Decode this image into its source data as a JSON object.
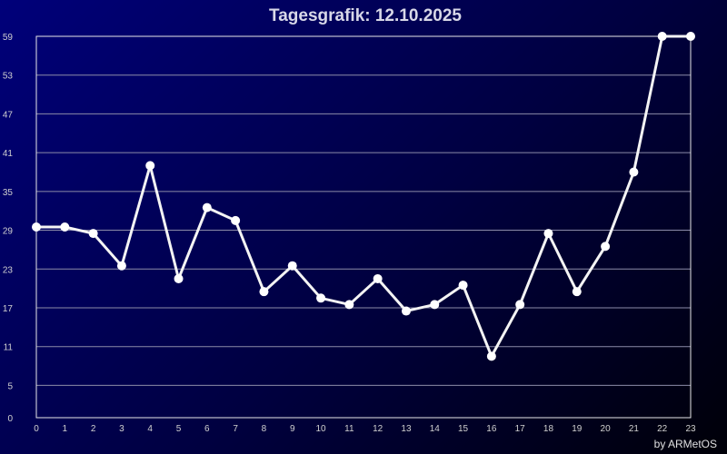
{
  "chart_data": {
    "type": "line",
    "title": "Tagesgrafik: 12.10.2025",
    "xlabel": "",
    "ylabel": "",
    "x": [
      0,
      1,
      2,
      3,
      4,
      5,
      6,
      7,
      8,
      9,
      10,
      11,
      12,
      13,
      14,
      15,
      16,
      17,
      18,
      19,
      20,
      21,
      22,
      23
    ],
    "x_tick_labels": [
      "0",
      "1",
      "2",
      "3",
      "4",
      "5",
      "6",
      "7",
      "8",
      "9",
      "10",
      "11",
      "12",
      "13",
      "14",
      "15",
      "16",
      "17",
      "18",
      "19",
      "20",
      "21",
      "22",
      "23"
    ],
    "y_ticks": [
      0,
      5,
      11,
      17,
      23,
      29,
      35,
      41,
      47,
      53,
      59
    ],
    "y_tick_labels": [
      "0",
      "5",
      "11",
      "17",
      "23",
      "29",
      "35",
      "41",
      "47",
      "53",
      "59"
    ],
    "ylim": [
      0,
      59
    ],
    "xlim": [
      0,
      23
    ],
    "grid": true,
    "series": [
      {
        "values": [
          29.5,
          29.5,
          28.5,
          23.5,
          39,
          21.5,
          32.5,
          30.5,
          19.5,
          23.5,
          18.5,
          17.5,
          21.5,
          16.5,
          17.5,
          20.5,
          9.5,
          17.5,
          28.5,
          19.5,
          26.5,
          38,
          59,
          59
        ]
      }
    ],
    "colors": {
      "line": "#f4f4f4",
      "marker": "#ffffff",
      "grid": "#8c8ca8",
      "axis": "#e8e8e8",
      "text": "#d0d0d0"
    },
    "credit": "by ARMetOS"
  }
}
